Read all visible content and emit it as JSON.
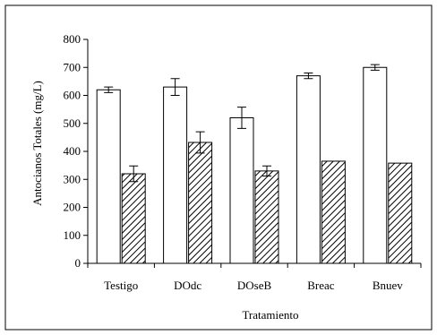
{
  "chart_data": {
    "type": "bar",
    "title": "",
    "xlabel": "Tratamiento",
    "ylabel": "Antocianos Totales (mg/L)",
    "ylim": [
      0,
      800
    ],
    "yticks": [
      0,
      100,
      200,
      300,
      400,
      500,
      600,
      700,
      800
    ],
    "grid": false,
    "legend": "none",
    "categories": [
      "Testigo",
      "DOdc",
      "DOseB",
      "Breac",
      "Bnuev"
    ],
    "series": [
      {
        "fill": "#ffffff",
        "pattern": "none",
        "values": [
          620,
          630,
          520,
          670,
          700
        ],
        "errors": [
          10,
          30,
          38,
          10,
          10
        ]
      },
      {
        "fill": "#ffffff",
        "pattern": "diagonal-hatch",
        "values": [
          320,
          432,
          330,
          365,
          358
        ],
        "errors": [
          28,
          38,
          18,
          0,
          0
        ]
      }
    ]
  }
}
